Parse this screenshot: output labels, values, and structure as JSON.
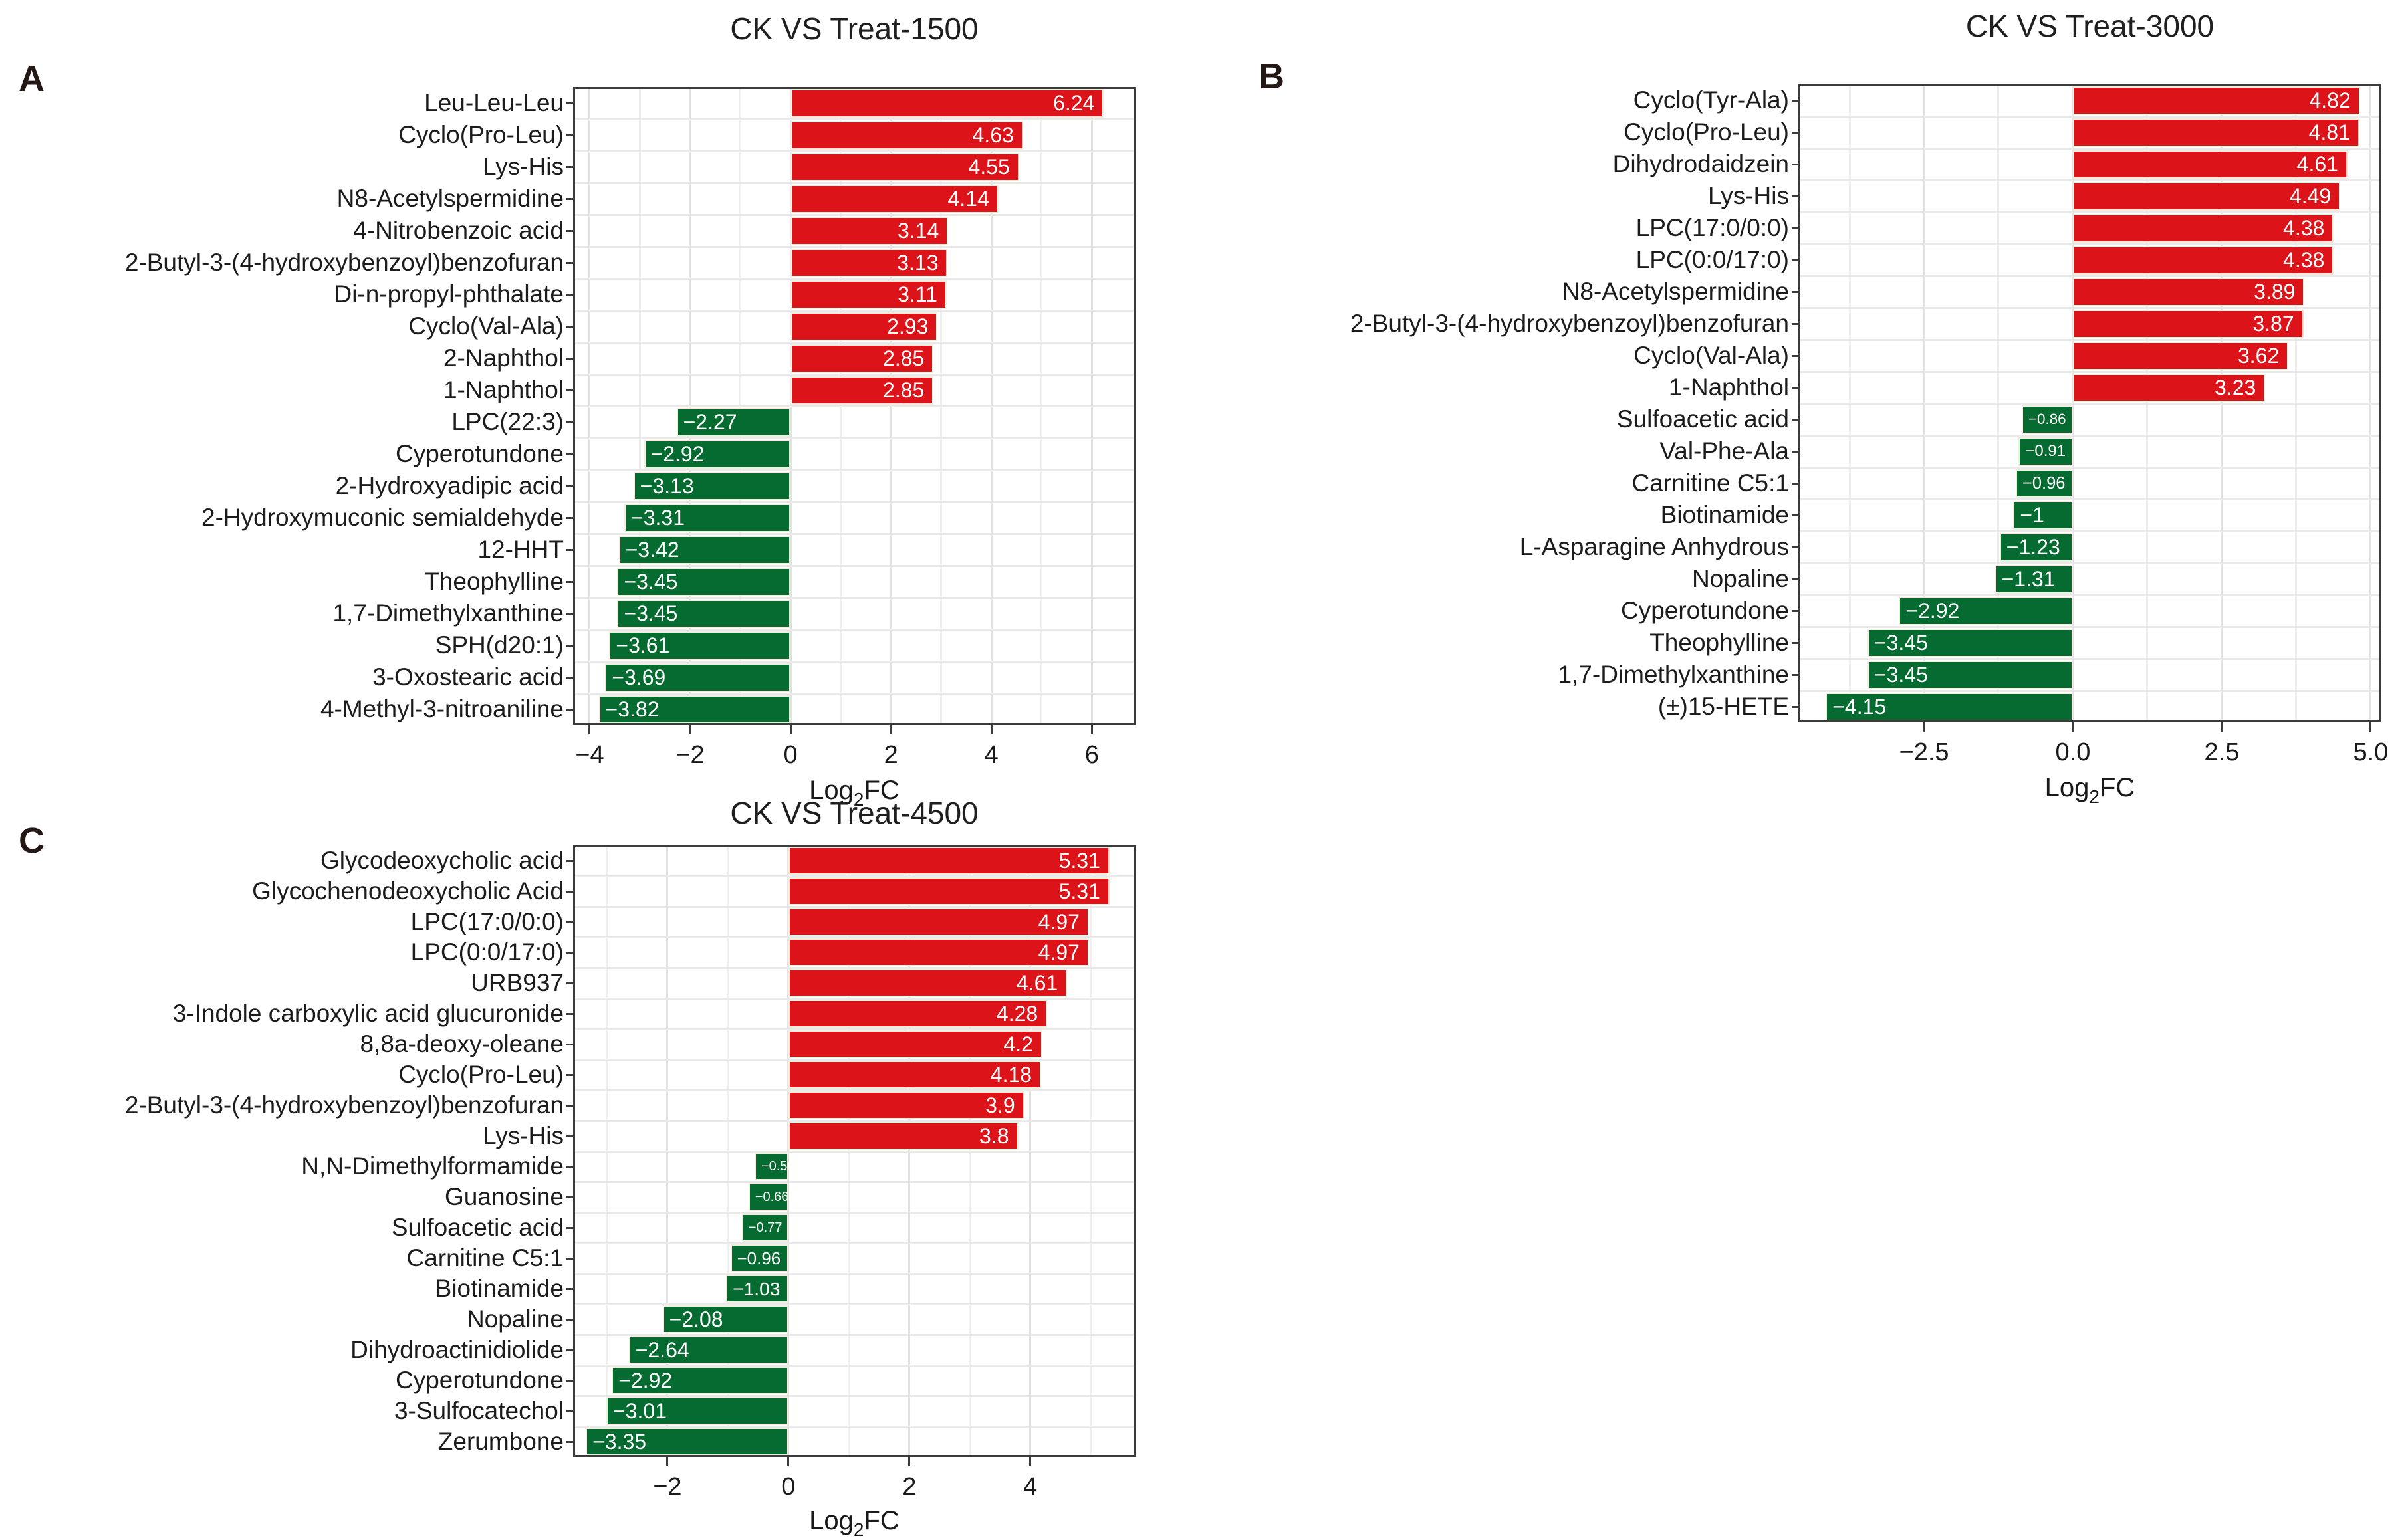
{
  "figure": {
    "panels": [
      {
        "label": "A",
        "title": "CK VS Treat-1500",
        "xlabel": {
          "pre": "Log",
          "sub": "2",
          "post": "FC"
        }
      },
      {
        "label": "B",
        "title": "CK VS Treat-3000",
        "xlabel": {
          "pre": "Log",
          "sub": "2",
          "post": "FC"
        }
      },
      {
        "label": "C",
        "title": "CK VS Treat-4500",
        "xlabel": {
          "pre": "Log",
          "sub": "2",
          "post": "FC"
        }
      }
    ]
  },
  "chart_data": [
    {
      "type": "bar",
      "orientation": "horizontal",
      "title": "CK VS Treat-1500",
      "xlabel": "Log2FC",
      "ylabel": "",
      "grid": true,
      "legend": false,
      "categories": [
        "Leu-Leu-Leu",
        "Cyclo(Pro-Leu)",
        "Lys-His",
        "N8-Acetylspermidine",
        "4-Nitrobenzoic acid",
        "2-Butyl-3-(4-hydroxybenzoyl)benzofuran",
        "Di-n-propyl-phthalate",
        "Cyclo(Val-Ala)",
        "2-Naphthol",
        "1-Naphthol",
        "LPC(22:3)",
        "Cyperotundone",
        "2-Hydroxyadipic acid",
        "2-Hydroxymuconic semialdehyde",
        "12-HHT",
        "Theophylline",
        "1,7-Dimethylxanthine",
        "SPH(d20:1)",
        "3-Oxostearic acid",
        "4-Methyl-3-nitroaniline"
      ],
      "values": [
        6.24,
        4.63,
        4.55,
        4.14,
        3.14,
        3.13,
        3.11,
        2.93,
        2.85,
        2.85,
        -2.27,
        -2.92,
        -3.13,
        -3.31,
        -3.42,
        -3.45,
        -3.45,
        -3.61,
        -3.69,
        -3.82
      ],
      "value_labels": [
        "6.24",
        "4.63",
        "4.55",
        "4.14",
        "3.14",
        "3.13",
        "3.11",
        "2.93",
        "2.85",
        "2.85",
        "−2.27",
        "−2.92",
        "−3.13",
        "−3.31",
        "−3.42",
        "−3.45",
        "−3.45",
        "−3.61",
        "−3.69",
        "−3.82"
      ],
      "xlim": [
        -4.33,
        6.87
      ],
      "xticks": [
        -4,
        -2,
        0,
        2,
        4,
        6
      ],
      "xtick_labels": [
        "−4",
        "−2",
        "0",
        "2",
        "4",
        "6"
      ],
      "minor_step": 1,
      "bar_color_positive": "#dc1318",
      "bar_color_negative": "#066b31"
    },
    {
      "type": "bar",
      "orientation": "horizontal",
      "title": "CK VS Treat-3000",
      "xlabel": "Log2FC",
      "ylabel": "",
      "grid": true,
      "legend": false,
      "categories": [
        "Cyclo(Tyr-Ala)",
        "Cyclo(Pro-Leu)",
        "Dihydrodaidzein",
        "Lys-His",
        "LPC(17:0/0:0)",
        "LPC(0:0/17:0)",
        "N8-Acetylspermidine",
        "2-Butyl-3-(4-hydroxybenzoyl)benzofuran",
        "Cyclo(Val-Ala)",
        "1-Naphthol",
        "Sulfoacetic acid",
        "Val-Phe-Ala",
        "Carnitine C5:1",
        "Biotinamide",
        "L-Asparagine Anhydrous",
        "Nopaline",
        "Cyperotundone",
        "Theophylline",
        "1,7-Dimethylxanthine",
        "(±)15-HETE"
      ],
      "values": [
        4.82,
        4.81,
        4.61,
        4.49,
        4.38,
        4.38,
        3.89,
        3.87,
        3.62,
        3.23,
        -0.86,
        -0.91,
        -0.96,
        -1,
        -1.23,
        -1.31,
        -2.92,
        -3.45,
        -3.45,
        -4.15
      ],
      "value_labels": [
        "4.82",
        "4.81",
        "4.61",
        "4.49",
        "4.38",
        "4.38",
        "3.89",
        "3.87",
        "3.62",
        "3.23",
        "−0.86",
        "−0.91",
        "−0.96",
        "−1",
        "−1.23",
        "−1.31",
        "−2.92",
        "−3.45",
        "−3.45",
        "−4.15"
      ],
      "xlim": [
        -4.61,
        5.18
      ],
      "xticks": [
        -2.5,
        0,
        2.5,
        5
      ],
      "xtick_labels": [
        "−2.5",
        "0.0",
        "2.5",
        "5.0"
      ],
      "minor_step": 1.25,
      "bar_color_positive": "#dc1318",
      "bar_color_negative": "#066b31"
    },
    {
      "type": "bar",
      "orientation": "horizontal",
      "title": "CK VS Treat-4500",
      "xlabel": "Log2FC",
      "ylabel": "",
      "grid": true,
      "legend": false,
      "categories": [
        "Glycodeoxycholic acid",
        "Glycochenodeoxycholic Acid",
        "LPC(17:0/0:0)",
        "LPC(0:0/17:0)",
        "URB937",
        "3-Indole carboxylic acid glucuronide",
        "8,8a-deoxy-oleane",
        "Cyclo(Pro-Leu)",
        "2-Butyl-3-(4-hydroxybenzoyl)benzofuran",
        "Lys-His",
        "N,N-Dimethylformamide",
        "Guanosine",
        "Sulfoacetic acid",
        "Carnitine C5:1",
        "Biotinamide",
        "Nopaline",
        "Dihydroactinidiolide",
        "Cyperotundone",
        "3-Sulfocatechol",
        "Zerumbone"
      ],
      "values": [
        5.31,
        5.31,
        4.97,
        4.97,
        4.61,
        4.28,
        4.2,
        4.18,
        3.9,
        3.8,
        -0.56,
        -0.66,
        -0.77,
        -0.96,
        -1.03,
        -2.08,
        -2.64,
        -2.92,
        -3.01,
        -3.35
      ],
      "value_labels": [
        "5.31",
        "5.31",
        "4.97",
        "4.97",
        "4.61",
        "4.28",
        "4.2",
        "4.18",
        "3.9",
        "3.8",
        "−0.56",
        "−0.66",
        "−0.77",
        "−0.96",
        "−1.03",
        "−2.08",
        "−2.64",
        "−2.92",
        "−3.01",
        "−3.35"
      ],
      "xlim": [
        -3.56,
        5.74
      ],
      "xticks": [
        -2,
        0,
        2,
        4
      ],
      "xtick_labels": [
        "−2",
        "0",
        "2",
        "4"
      ],
      "minor_step": 1,
      "bar_color_positive": "#dc1318",
      "bar_color_negative": "#066b31"
    }
  ]
}
